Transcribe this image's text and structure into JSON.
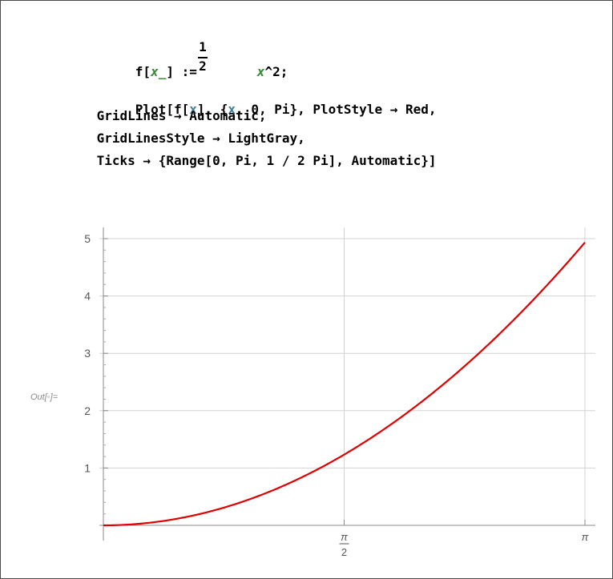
{
  "code": {
    "line1": {
      "f_open": "f[",
      "x_pattern": "x_",
      "close_assign": "] :=",
      "frac_num": "1",
      "frac_den": "2",
      "x_var": "x",
      "power": "^2;"
    },
    "line2": {
      "plot_open": "Plot[f[",
      "x_arg": "x",
      "mid": "], {",
      "x_iter": "x",
      "rest": ", 0, Pi}, PlotStyle → Red,"
    },
    "line3": " GridLines → Automatic,",
    "line4": " GridLinesStyle → LightGray,",
    "line5": " Ticks → {Range[0, Pi, 1 / 2 Pi], Automatic}]"
  },
  "output_label": "Out[◦]=",
  "chart_data": {
    "type": "line",
    "function": "1/2 x^2",
    "xlim": [
      0,
      3.14159
    ],
    "ylim": [
      0,
      5.2
    ],
    "x_ticks": [
      {
        "value": 1.5708,
        "num": "π",
        "den": "2"
      },
      {
        "value": 3.14159,
        "num": "π",
        "den": ""
      }
    ],
    "y_ticks": [
      "1",
      "2",
      "3",
      "4",
      "5"
    ],
    "y_tick_values": [
      1,
      2,
      3,
      4,
      5
    ],
    "grid": true,
    "line_color": "#e00000",
    "grid_color": "#d3d3d3"
  }
}
